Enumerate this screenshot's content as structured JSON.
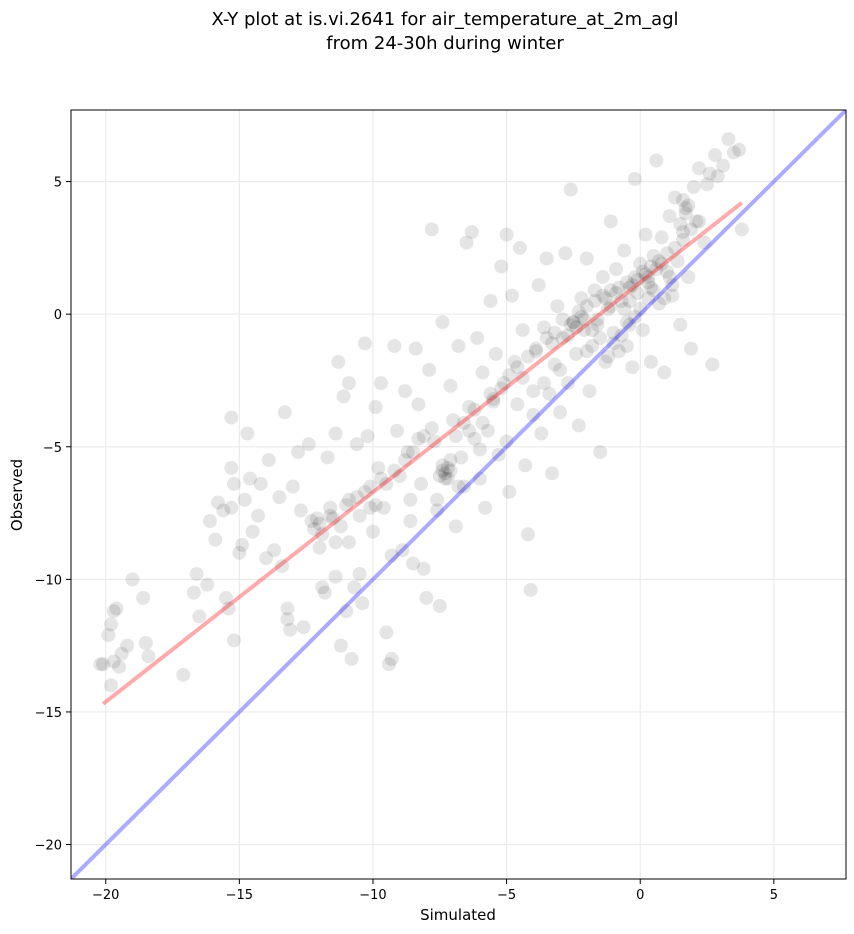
{
  "chart_data": {
    "type": "scatter",
    "title_lines": [
      "X-Y plot at is.vi.2641 for air_temperature_at_2m_agl",
      "from 24-30h during winter"
    ],
    "xlabel": "Simulated",
    "ylabel": "Observed",
    "xlim": [
      -21.3,
      7.7
    ],
    "ylim": [
      -21.3,
      7.7
    ],
    "xticks": [
      -20,
      -15,
      -10,
      -5,
      0,
      5
    ],
    "yticks": [
      -20,
      -15,
      -10,
      -5,
      0,
      5
    ],
    "xtick_labels": [
      "−20",
      "−15",
      "−10",
      "−5",
      "0",
      "5"
    ],
    "ytick_labels": [
      "−20",
      "−15",
      "−10",
      "−5",
      "0",
      "5"
    ],
    "grid": true,
    "point_color": "#000000",
    "point_alpha": 0.1,
    "fit_line": {
      "color": "#ff0000",
      "alpha": 0.33,
      "x": [
        -20.1,
        3.8
      ],
      "y": [
        -14.7,
        4.2
      ]
    },
    "identity_line": {
      "color": "#0000ff",
      "alpha": 0.33,
      "x": [
        -21.3,
        7.7
      ],
      "y": [
        -21.3,
        7.7
      ]
    },
    "points": [
      [
        -20.2,
        -13.2
      ],
      [
        -20.1,
        -13.2
      ],
      [
        -19.7,
        -13.1
      ],
      [
        -19.5,
        -13.3
      ],
      [
        -19.9,
        -12.1
      ],
      [
        -19.8,
        -11.7
      ],
      [
        -19.7,
        -11.2
      ],
      [
        -19.6,
        -11.1
      ],
      [
        -19.4,
        -12.8
      ],
      [
        -19.2,
        -12.5
      ],
      [
        -19.0,
        -10.0
      ],
      [
        -18.6,
        -10.7
      ],
      [
        -18.5,
        -12.4
      ],
      [
        -18.4,
        -12.9
      ],
      [
        -19.8,
        -14.0
      ],
      [
        -17.1,
        -13.6
      ],
      [
        -16.7,
        -10.5
      ],
      [
        -16.6,
        -9.8
      ],
      [
        -16.5,
        -11.4
      ],
      [
        -16.2,
        -10.2
      ],
      [
        -16.1,
        -7.8
      ],
      [
        -15.9,
        -8.5
      ],
      [
        -15.8,
        -7.1
      ],
      [
        -15.6,
        -7.4
      ],
      [
        -15.5,
        -10.7
      ],
      [
        -15.4,
        -11.1
      ],
      [
        -15.3,
        -7.3
      ],
      [
        -15.2,
        -6.4
      ],
      [
        -15.3,
        -3.9
      ],
      [
        -15.3,
        -5.8
      ],
      [
        -15.2,
        -12.3
      ],
      [
        -15.0,
        -9.0
      ],
      [
        -14.9,
        -8.7
      ],
      [
        -14.8,
        -7.0
      ],
      [
        -14.6,
        -6.2
      ],
      [
        -14.7,
        -4.5
      ],
      [
        -14.5,
        -8.2
      ],
      [
        -14.3,
        -7.6
      ],
      [
        -14.2,
        -6.4
      ],
      [
        -14.0,
        -9.2
      ],
      [
        -13.9,
        -5.5
      ],
      [
        -13.7,
        -8.9
      ],
      [
        -13.5,
        -6.9
      ],
      [
        -13.4,
        -9.5
      ],
      [
        -13.3,
        -3.7
      ],
      [
        -13.2,
        -11.1
      ],
      [
        -13.2,
        -11.5
      ],
      [
        -13.1,
        -11.9
      ],
      [
        -13.0,
        -6.5
      ],
      [
        -12.8,
        -5.2
      ],
      [
        -12.7,
        -7.4
      ],
      [
        -12.6,
        -11.8
      ],
      [
        -12.4,
        -4.9
      ],
      [
        -12.2,
        -8.1
      ],
      [
        -12.1,
        -7.7
      ],
      [
        -12.0,
        -7.9
      ],
      [
        -11.9,
        -10.3
      ],
      [
        -11.8,
        -10.5
      ],
      [
        -11.7,
        -5.4
      ],
      [
        -11.6,
        -7.3
      ],
      [
        -11.5,
        -7.7
      ],
      [
        -11.4,
        -9.9
      ],
      [
        -11.4,
        -4.5
      ],
      [
        -11.3,
        -1.8
      ],
      [
        -11.2,
        -12.5
      ],
      [
        -11.1,
        -3.1
      ],
      [
        -11.0,
        -7.2
      ],
      [
        -10.9,
        -8.6
      ],
      [
        -10.9,
        -2.6
      ],
      [
        -10.8,
        -13.0
      ],
      [
        -10.7,
        -10.3
      ],
      [
        -10.6,
        -4.9
      ],
      [
        -10.5,
        -7.6
      ],
      [
        -10.4,
        -10.9
      ],
      [
        -10.3,
        -1.1
      ],
      [
        -10.2,
        -4.6
      ],
      [
        -10.1,
        -6.5
      ],
      [
        -10.0,
        -8.2
      ],
      [
        -9.9,
        -3.5
      ],
      [
        -9.8,
        -5.8
      ],
      [
        -9.7,
        -2.6
      ],
      [
        -9.6,
        -7.3
      ],
      [
        -9.5,
        -12.0
      ],
      [
        -9.4,
        -13.2
      ],
      [
        -9.3,
        -13.0
      ],
      [
        -9.2,
        -1.2
      ],
      [
        -9.1,
        -4.4
      ],
      [
        -9.0,
        -6.1
      ],
      [
        -8.9,
        -8.9
      ],
      [
        -8.8,
        -2.9
      ],
      [
        -8.7,
        -5.2
      ],
      [
        -8.6,
        -7.0
      ],
      [
        -8.5,
        -9.4
      ],
      [
        -8.4,
        -1.3
      ],
      [
        -8.3,
        -3.4
      ],
      [
        -8.2,
        -6.4
      ],
      [
        -8.1,
        -9.6
      ],
      [
        -8.0,
        -10.7
      ],
      [
        -7.9,
        -2.1
      ],
      [
        -7.8,
        3.2
      ],
      [
        -7.7,
        -4.8
      ],
      [
        -7.6,
        -7.4
      ],
      [
        -7.5,
        -11.0
      ],
      [
        -7.4,
        -0.3
      ],
      [
        -7.3,
        -6.0
      ],
      [
        -7.2,
        -5.8
      ],
      [
        -7.1,
        -2.7
      ],
      [
        -7.0,
        -4.0
      ],
      [
        -6.9,
        -8.0
      ],
      [
        -6.8,
        -1.2
      ],
      [
        -6.7,
        -5.4
      ],
      [
        -6.6,
        -6.5
      ],
      [
        -6.5,
        2.7
      ],
      [
        -6.4,
        -3.5
      ],
      [
        -6.3,
        3.1
      ],
      [
        -6.2,
        -4.7
      ],
      [
        -6.1,
        -0.9
      ],
      [
        -6.0,
        -6.2
      ],
      [
        -5.9,
        -2.2
      ],
      [
        -5.8,
        -7.3
      ],
      [
        -5.7,
        -4.4
      ],
      [
        -5.6,
        0.5
      ],
      [
        -5.5,
        -3.2
      ],
      [
        -5.4,
        -1.5
      ],
      [
        -5.3,
        -5.3
      ],
      [
        -5.2,
        1.8
      ],
      [
        -5.1,
        -2.6
      ],
      [
        -5.0,
        3.0
      ],
      [
        -4.9,
        -6.7
      ],
      [
        -4.8,
        0.7
      ],
      [
        -4.7,
        -1.8
      ],
      [
        -4.6,
        -3.4
      ],
      [
        -4.5,
        2.5
      ],
      [
        -4.4,
        -0.6
      ],
      [
        -4.3,
        -5.7
      ],
      [
        -4.2,
        -8.3
      ],
      [
        -4.1,
        -10.4
      ],
      [
        -4.0,
        -2.9
      ],
      [
        -3.9,
        -1.4
      ],
      [
        -3.8,
        1.1
      ],
      [
        -3.7,
        -4.5
      ],
      [
        -3.6,
        -0.5
      ],
      [
        -3.5,
        2.1
      ],
      [
        -3.4,
        -3.0
      ],
      [
        -3.3,
        -6.0
      ],
      [
        -3.2,
        -1.9
      ],
      [
        -3.1,
        0.3
      ],
      [
        -3.0,
        -3.7
      ],
      [
        -2.9,
        -0.9
      ],
      [
        -2.8,
        2.3
      ],
      [
        -2.7,
        -2.6
      ],
      [
        -2.6,
        4.7
      ],
      [
        -2.5,
        -0.3
      ],
      [
        -2.4,
        -1.5
      ],
      [
        -2.3,
        -4.2
      ],
      [
        -2.2,
        0.6
      ],
      [
        -2.1,
        -0.2
      ],
      [
        -2.0,
        2.1
      ],
      [
        -1.9,
        -2.9
      ],
      [
        -1.8,
        -1.2
      ],
      [
        -1.7,
        0.9
      ],
      [
        -1.6,
        -0.4
      ],
      [
        -1.5,
        -5.2
      ],
      [
        -1.4,
        1.4
      ],
      [
        -1.3,
        -1.8
      ],
      [
        -1.2,
        0.2
      ],
      [
        -1.1,
        3.5
      ],
      [
        -1.0,
        -0.7
      ],
      [
        -0.9,
        1.7
      ],
      [
        -0.8,
        -1.4
      ],
      [
        -0.7,
        0.5
      ],
      [
        -0.6,
        2.4
      ],
      [
        -0.5,
        -0.3
      ],
      [
        -0.4,
        1.0
      ],
      [
        -0.3,
        -2.0
      ],
      [
        -0.2,
        5.1
      ],
      [
        -0.1,
        0.8
      ],
      [
        0.0,
        1.9
      ],
      [
        0.1,
        -0.6
      ],
      [
        0.2,
        3.0
      ],
      [
        0.3,
        1.2
      ],
      [
        0.4,
        -1.8
      ],
      [
        0.5,
        2.2
      ],
      [
        0.6,
        5.8
      ],
      [
        0.7,
        0.4
      ],
      [
        0.8,
        2.9
      ],
      [
        0.9,
        -2.2
      ],
      [
        1.0,
        1.6
      ],
      [
        1.1,
        3.7
      ],
      [
        1.2,
        0.7
      ],
      [
        1.3,
        4.4
      ],
      [
        1.4,
        2.0
      ],
      [
        1.5,
        -0.4
      ],
      [
        1.6,
        3.1
      ],
      [
        1.7,
        4.0
      ],
      [
        1.8,
        1.4
      ],
      [
        1.9,
        -1.3
      ],
      [
        2.0,
        4.8
      ],
      [
        2.1,
        3.5
      ],
      [
        2.2,
        5.5
      ],
      [
        2.4,
        2.7
      ],
      [
        2.5,
        4.9
      ],
      [
        2.6,
        5.3
      ],
      [
        2.7,
        -1.9
      ],
      [
        2.8,
        6.0
      ],
      [
        2.9,
        5.2
      ],
      [
        3.1,
        5.6
      ],
      [
        3.3,
        6.6
      ],
      [
        3.5,
        6.1
      ],
      [
        3.7,
        6.2
      ],
      [
        3.8,
        3.2
      ],
      [
        -12.3,
        -7.8
      ],
      [
        -11.9,
        -8.3
      ],
      [
        -11.6,
        -7.6
      ],
      [
        -11.2,
        -8.0
      ],
      [
        -10.9,
        -7.0
      ],
      [
        -10.6,
        -6.9
      ],
      [
        -10.3,
        -6.7
      ],
      [
        -9.9,
        -7.2
      ],
      [
        -9.5,
        -6.4
      ],
      [
        -9.2,
        -5.9
      ],
      [
        -8.8,
        -5.5
      ],
      [
        -8.5,
        -5.2
      ],
      [
        -8.1,
        -4.6
      ],
      [
        -7.8,
        -4.3
      ],
      [
        -7.4,
        -5.9
      ],
      [
        -7.3,
        -6.2
      ],
      [
        -7.1,
        -5.5
      ],
      [
        -6.9,
        -4.6
      ],
      [
        -6.6,
        -4.1
      ],
      [
        -6.2,
        -3.6
      ],
      [
        -5.9,
        -4.1
      ],
      [
        -5.6,
        -3.0
      ],
      [
        -5.2,
        -2.8
      ],
      [
        -4.9,
        -2.3
      ],
      [
        -4.6,
        -2.0
      ],
      [
        -4.2,
        -1.6
      ],
      [
        -3.9,
        -1.3
      ],
      [
        -3.5,
        -0.9
      ],
      [
        -3.2,
        -0.7
      ],
      [
        -2.9,
        -0.2
      ],
      [
        -2.6,
        -0.4
      ],
      [
        -2.3,
        0.1
      ],
      [
        -2.0,
        0.3
      ],
      [
        -1.7,
        0.5
      ],
      [
        -1.4,
        0.7
      ],
      [
        -1.1,
        0.9
      ],
      [
        -0.8,
        1.0
      ],
      [
        -0.5,
        1.2
      ],
      [
        -0.2,
        1.4
      ],
      [
        0.1,
        1.6
      ],
      [
        0.4,
        1.8
      ],
      [
        0.7,
        2.0
      ],
      [
        1.0,
        2.3
      ],
      [
        1.3,
        2.5
      ],
      [
        1.6,
        2.8
      ],
      [
        1.9,
        3.2
      ],
      [
        2.2,
        3.5
      ],
      [
        -7.5,
        -6.1
      ],
      [
        -7.4,
        -5.7
      ],
      [
        -7.2,
        -6.2
      ],
      [
        -7.1,
        -5.9
      ],
      [
        -2.4,
        -0.5
      ],
      [
        -2.2,
        -0.1
      ],
      [
        -2.5,
        -0.3
      ],
      [
        -2.1,
        -0.6
      ],
      [
        -1.3,
        0.6
      ],
      [
        -1.1,
        0.3
      ],
      [
        -0.9,
        0.8
      ],
      [
        -0.6,
        0.2
      ],
      [
        -0.3,
        1.1
      ],
      [
        -0.1,
        1.3
      ],
      [
        0.2,
        1.5
      ],
      [
        0.4,
        1.0
      ],
      [
        0.6,
        1.7
      ],
      [
        0.8,
        1.9
      ],
      [
        1.1,
        1.4
      ],
      [
        1.5,
        3.4
      ],
      [
        1.7,
        3.8
      ],
      [
        1.8,
        4.1
      ],
      [
        1.6,
        4.3
      ],
      [
        0.3,
        1.4
      ],
      [
        -0.4,
        0.5
      ],
      [
        -1.6,
        -0.2
      ],
      [
        -2.7,
        -0.8
      ],
      [
        -3.3,
        -1.1
      ],
      [
        -4.4,
        -2.4
      ],
      [
        -5.5,
        -3.3
      ],
      [
        -6.4,
        -4.4
      ],
      [
        -8.3,
        -4.7
      ],
      [
        -9.7,
        -6.2
      ],
      [
        -10.1,
        -7.3
      ],
      [
        -11.4,
        -8.6
      ],
      [
        -12.0,
        -8.8
      ],
      [
        -1.5,
        -0.9
      ],
      [
        -1.0,
        -1.1
      ],
      [
        -0.7,
        -0.8
      ],
      [
        -0.4,
        -0.4
      ],
      [
        -0.2,
        -0.1
      ],
      [
        0.0,
        0.2
      ],
      [
        0.3,
        0.6
      ],
      [
        0.5,
        0.9
      ],
      [
        -1.8,
        -0.6
      ],
      [
        -2.0,
        -1.4
      ],
      [
        -1.2,
        -1.6
      ],
      [
        -0.5,
        -1.2
      ],
      [
        0.9,
        0.6
      ],
      [
        1.2,
        1.1
      ],
      [
        -3.0,
        -2.1
      ],
      [
        -3.6,
        -2.6
      ],
      [
        -4.0,
        -3.8
      ],
      [
        -5.0,
        -4.8
      ],
      [
        -6.0,
        -5.1
      ],
      [
        -6.8,
        -6.5
      ],
      [
        -7.6,
        -7.0
      ],
      [
        -8.6,
        -7.8
      ],
      [
        -9.3,
        -9.1
      ],
      [
        -10.5,
        -9.8
      ],
      [
        -11.0,
        -11.2
      ]
    ]
  }
}
